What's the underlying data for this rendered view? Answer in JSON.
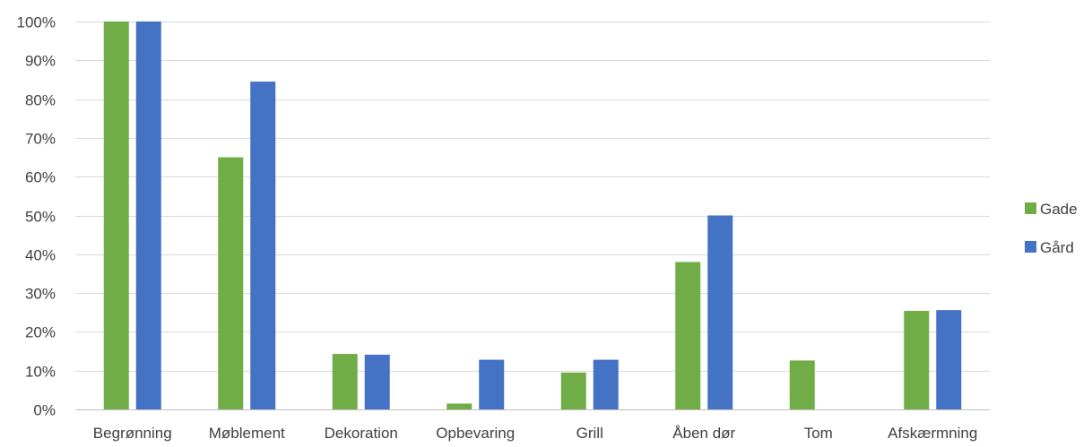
{
  "chart_data": {
    "type": "bar",
    "title": "",
    "xlabel": "",
    "ylabel": "",
    "categories": [
      "Begrønning",
      "Møblement",
      "Dekoration",
      "Opbevaring",
      "Grill",
      "Åben dør",
      "Tom",
      "Afskærmning"
    ],
    "series": [
      {
        "name": "Gade",
        "color": "#70AD47",
        "values": [
          100,
          65,
          14.3,
          1.5,
          9.5,
          38,
          12.6,
          25.4
        ]
      },
      {
        "name": "Gård",
        "color": "#4472C4",
        "values": [
          100,
          84.5,
          14.1,
          12.8,
          12.8,
          50,
          0,
          25.6
        ]
      }
    ],
    "ylim": [
      0,
      100
    ],
    "yticks": [
      "0%",
      "10%",
      "20%",
      "30%",
      "40%",
      "50%",
      "60%",
      "70%",
      "80%",
      "90%",
      "100%"
    ],
    "grid": true,
    "legend_position": "right",
    "gridline_color": "#D9D9D9",
    "axis_color": "#BFBFBF"
  }
}
